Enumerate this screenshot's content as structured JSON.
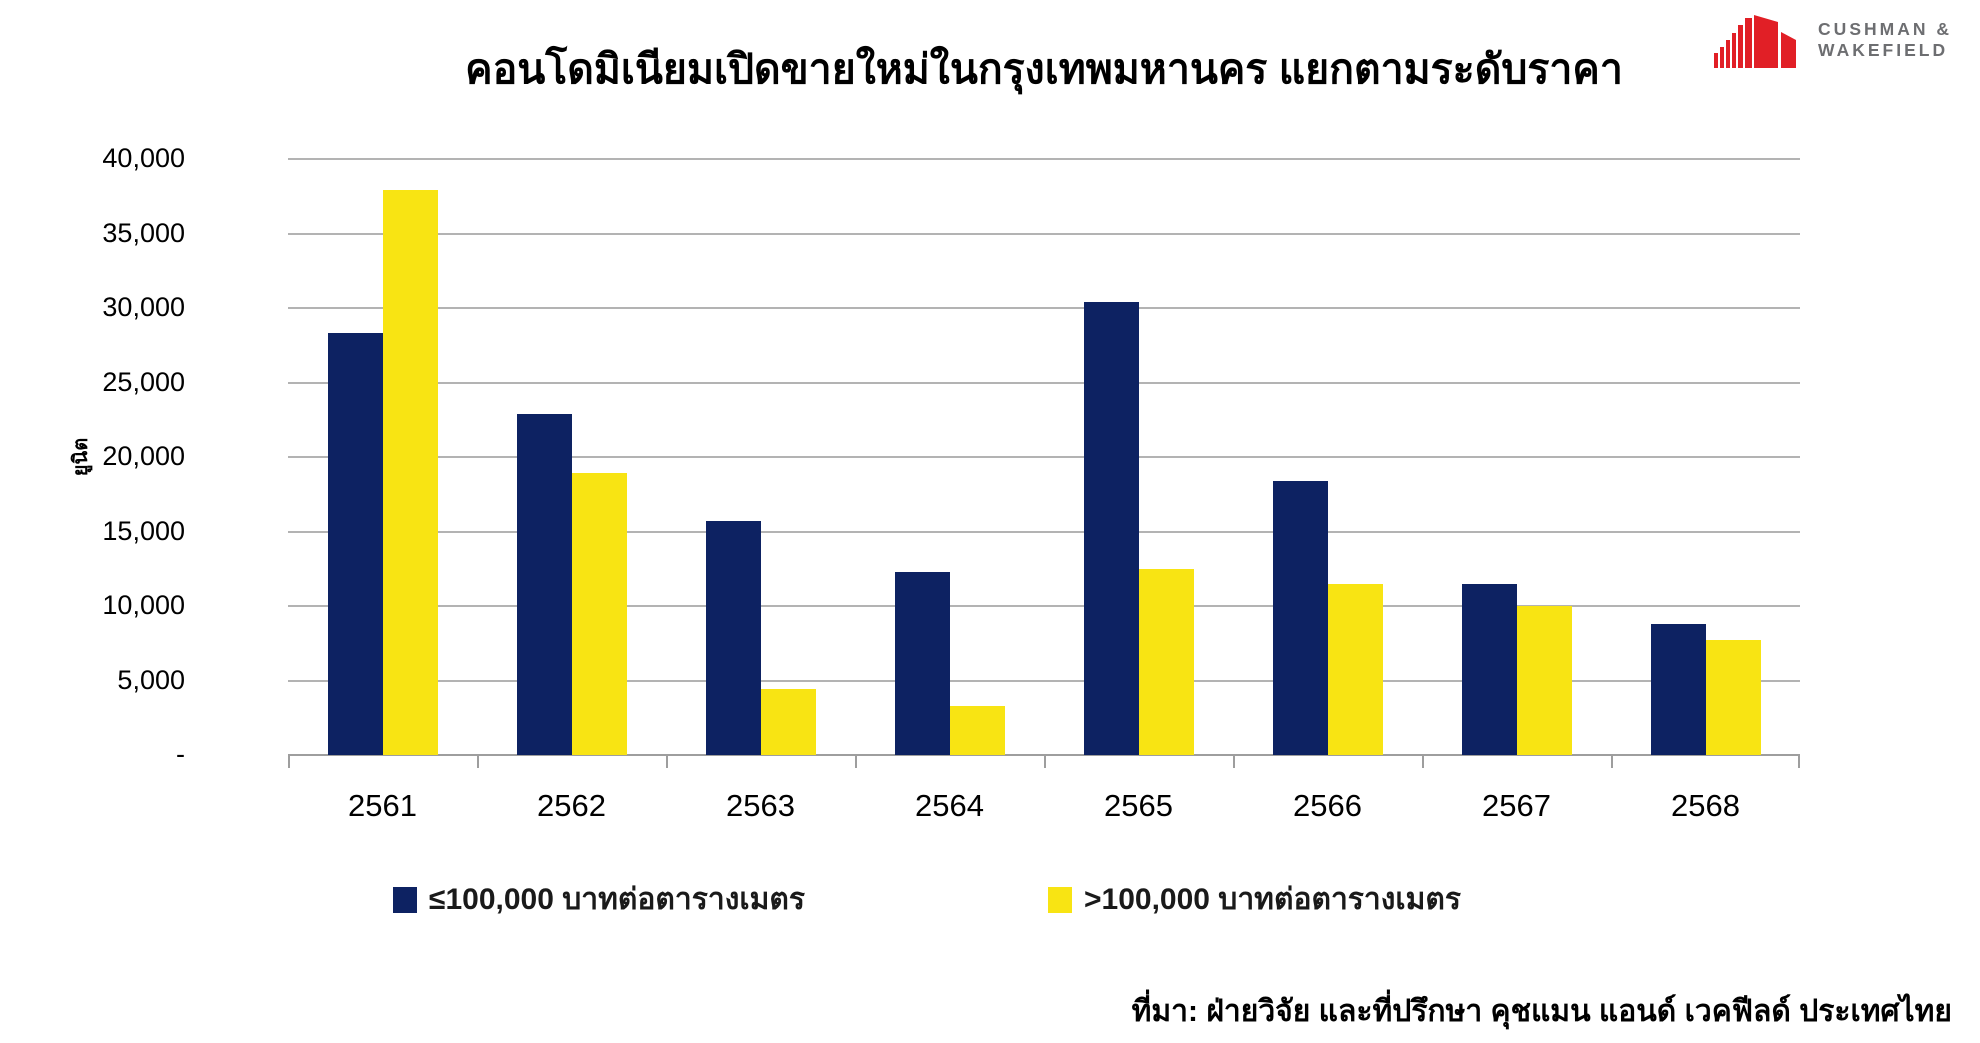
{
  "logo": {
    "line1": "CUSHMAN &",
    "line2": "WAKEFIELD",
    "red": "#e11f26",
    "gray": "#6d6e71"
  },
  "chart_data": {
    "type": "bar",
    "title": "คอนโดมิเนียมเปิดขายใหม่ในกรุงเทพมหานคร แยกตามระดับราคา",
    "ylabel": "ยูนิต",
    "xlabel": "",
    "categories": [
      "2561",
      "2562",
      "2563",
      "2564",
      "2565",
      "2566",
      "2567",
      "2568"
    ],
    "series": [
      {
        "name": "≤100,000 บาทต่อตารางเมตร",
        "color": "#0d2262",
        "values": [
          28300,
          22900,
          15700,
          12300,
          30400,
          18400,
          11500,
          8800
        ]
      },
      {
        "name": ">100,000 บาทต่อตารางเมตร",
        "color": "#f8e413",
        "values": [
          37900,
          18900,
          4400,
          3300,
          12500,
          11500,
          10000,
          7700
        ]
      }
    ],
    "ylim": [
      0,
      40000
    ],
    "y_tick_step": 5000,
    "y_ticks": [
      "-",
      "5,000",
      "10,000",
      "15,000",
      "20,000",
      "25,000",
      "30,000",
      "35,000",
      "40,000"
    ],
    "grid": true,
    "legend_position": "bottom"
  },
  "colors": {
    "grid": "#b3b3b3",
    "axis": "#9e9e9e"
  },
  "source_note": "ที่มา: ฝ่ายวิจัย และที่ปรึกษา คุชแมน แอนด์ เวคฟีลด์ ประเทศไทย"
}
